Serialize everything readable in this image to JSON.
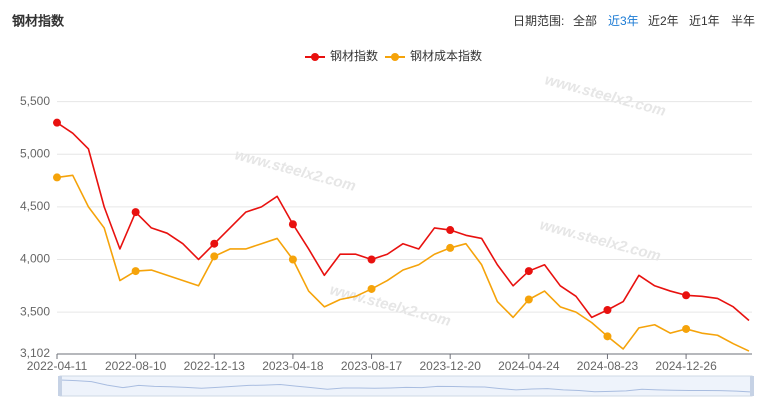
{
  "title": "钢材指数",
  "range_label": "日期范围:",
  "tabs": [
    "全部",
    "近3年",
    "近2年",
    "近1年",
    "半年"
  ],
  "active_tab": 1,
  "watermark": "www.steelx2.com",
  "chart_data": {
    "type": "line",
    "categories": [
      "2022-04-11",
      null,
      null,
      null,
      null,
      "2022-08-10",
      null,
      null,
      null,
      null,
      "2022-12-13",
      null,
      null,
      null,
      null,
      "2023-04-18",
      null,
      null,
      null,
      null,
      "2023-08-17",
      null,
      null,
      null,
      null,
      "2023-12-20",
      null,
      null,
      null,
      null,
      "2024-04-24",
      null,
      null,
      null,
      null,
      "2024-08-23",
      null,
      null,
      null,
      null,
      "2024-12-26",
      null,
      null,
      null,
      null
    ],
    "series": [
      {
        "name": "钢材指数",
        "color": "#e8110f",
        "values": [
          5300,
          5200,
          5050,
          4500,
          4100,
          4450,
          4300,
          4250,
          4150,
          4000,
          4150,
          4300,
          4450,
          4500,
          4600,
          4335,
          4100,
          3850,
          4050,
          4050,
          4000,
          4050,
          4150,
          4100,
          4300,
          4280,
          4230,
          4200,
          3950,
          3750,
          3890,
          3950,
          3750,
          3650,
          3450,
          3520,
          3600,
          3850,
          3750,
          3700,
          3660,
          3650,
          3630,
          3550,
          3420
        ]
      },
      {
        "name": "钢材成本指数",
        "color": "#f5a30a",
        "values": [
          4780,
          4800,
          4500,
          4300,
          3800,
          3890,
          3900,
          3850,
          3800,
          3750,
          4030,
          4100,
          4100,
          4150,
          4200,
          4000,
          3700,
          3550,
          3620,
          3650,
          3720,
          3800,
          3900,
          3950,
          4050,
          4110,
          4150,
          3950,
          3600,
          3450,
          3620,
          3700,
          3550,
          3500,
          3400,
          3270,
          3150,
          3350,
          3380,
          3300,
          3340,
          3300,
          3280,
          3200,
          3130
        ]
      }
    ],
    "ylim": [
      3102,
      5620
    ],
    "yticks": [
      {
        "value": 3102,
        "label": "3,102"
      },
      {
        "value": 3500,
        "label": "3,500"
      },
      {
        "value": 4000,
        "label": "4,000"
      },
      {
        "value": 4500,
        "label": "4,500"
      },
      {
        "value": 5000,
        "label": "5,000"
      },
      {
        "value": 5500,
        "label": "5,500"
      }
    ],
    "grid": true
  }
}
